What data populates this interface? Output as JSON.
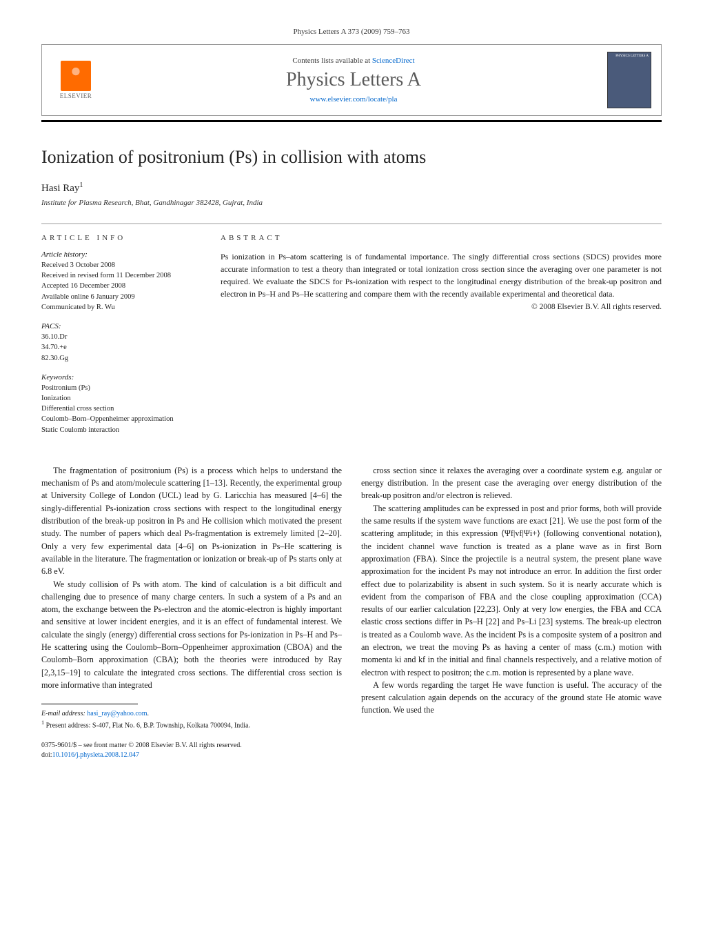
{
  "header": {
    "citation": "Physics Letters A 373 (2009) 759–763",
    "contents_prefix": "Contents lists available at ",
    "contents_link": "ScienceDirect",
    "journal_name": "Physics Letters A",
    "journal_url": "www.elsevier.com/locate/pla",
    "publisher": "ELSEVIER",
    "cover_label": "PHYSICS LETTERS A"
  },
  "title": "Ionization of positronium (Ps) in collision with atoms",
  "author": {
    "name": "Hasi Ray",
    "note_marker": "1"
  },
  "affiliation": "Institute for Plasma Research, Bhat, Gandhinagar 382428, Gujrat, India",
  "article_info": {
    "heading": "article info",
    "history_label": "Article history:",
    "history": [
      "Received 3 October 2008",
      "Received in revised form 11 December 2008",
      "Accepted 16 December 2008",
      "Available online 6 January 2009",
      "Communicated by R. Wu"
    ],
    "pacs_label": "PACS:",
    "pacs": [
      "36.10.Dr",
      "34.70.+e",
      "82.30.Gg"
    ],
    "keywords_label": "Keywords:",
    "keywords": [
      "Positronium (Ps)",
      "Ionization",
      "Differential cross section",
      "Coulomb–Born–Oppenheimer approximation",
      "Static Coulomb interaction"
    ]
  },
  "abstract": {
    "heading": "abstract",
    "text": "Ps ionization in Ps–atom scattering is of fundamental importance. The singly differential cross sections (SDCS) provides more accurate information to test a theory than integrated or total ionization cross section since the averaging over one parameter is not required. We evaluate the SDCS for Ps-ionization with respect to the longitudinal energy distribution of the break-up positron and electron in Ps–H and Ps–He scattering and compare them with the recently available experimental and theoretical data.",
    "copyright": "© 2008 Elsevier B.V. All rights reserved."
  },
  "body": {
    "p1": "The fragmentation of positronium (Ps) is a process which helps to understand the mechanism of Ps and atom/molecule scattering [1–13]. Recently, the experimental group at University College of London (UCL) lead by G. Laricchia has measured [4–6] the singly-differential Ps-ionization cross sections with respect to the longitudinal energy distribution of the break-up positron in Ps and He collision which motivated the present study. The number of papers which deal Ps-fragmentation is extremely limited [2–20]. Only a very few experimental data [4–6] on Ps-ionization in Ps–He scattering is available in the literature. The fragmentation or ionization or break-up of Ps starts only at 6.8 eV.",
    "p2": "We study collision of Ps with atom. The kind of calculation is a bit difficult and challenging due to presence of many charge centers. In such a system of a Ps and an atom, the exchange between the Ps-electron and the atomic-electron is highly important and sensitive at lower incident energies, and it is an effect of fundamental interest. We calculate the singly (energy) differential cross sections for Ps-ionization in Ps–H and Ps–He scattering using the Coulomb–Born–Oppenheimer approximation (CBOA) and the Coulomb–Born approximation (CBA); both the theories were introduced by Ray [2,3,15–19] to calculate the integrated cross sections. The differential cross section is more informative than integrated",
    "p3": "cross section since it relaxes the averaging over a coordinate system e.g. angular or energy distribution. In the present case the averaging over energy distribution of the break-up positron and/or electron is relieved.",
    "p4": "The scattering amplitudes can be expressed in post and prior forms, both will provide the same results if the system wave functions are exact [21]. We use the post form of the scattering amplitude; in this expression ⟨Ψf|vf|Ψi+⟩ (following conventional notation), the incident channel wave function is treated as a plane wave as in first Born approximation (FBA). Since the projectile is a neutral system, the present plane wave approximation for the incident Ps may not introduce an error. In addition the first order effect due to polarizability is absent in such system. So it is nearly accurate which is evident from the comparison of FBA and the close coupling approximation (CCA) results of our earlier calculation [22,23]. Only at very low energies, the FBA and CCA elastic cross sections differ in Ps–H [22] and Ps–Li [23] systems. The break-up electron is treated as a Coulomb wave. As the incident Ps is a composite system of a positron and an electron, we treat the moving Ps as having a center of mass (c.m.) motion with momenta ki and kf in the initial and final channels respectively, and a relative motion of electron with respect to positron; the c.m. motion is represented by a plane wave.",
    "p5": "A few words regarding the target He wave function is useful. The accuracy of the present calculation again depends on the accuracy of the ground state He atomic wave function. We used the"
  },
  "footnotes": {
    "email_label": "E-mail address: ",
    "email": "hasi_ray@yahoo.com",
    "note1": "Present address: S-407, Flat No. 6, B.P. Township, Kolkata 700094, India."
  },
  "footer": {
    "line1": "0375-9601/$ – see front matter  © 2008 Elsevier B.V. All rights reserved.",
    "doi_prefix": "doi:",
    "doi": "10.1016/j.physleta.2008.12.047"
  },
  "colors": {
    "link": "#0066cc",
    "elsevier_orange": "#ff6b00",
    "cover_bg": "#4a5a7a",
    "rule": "#000000"
  }
}
